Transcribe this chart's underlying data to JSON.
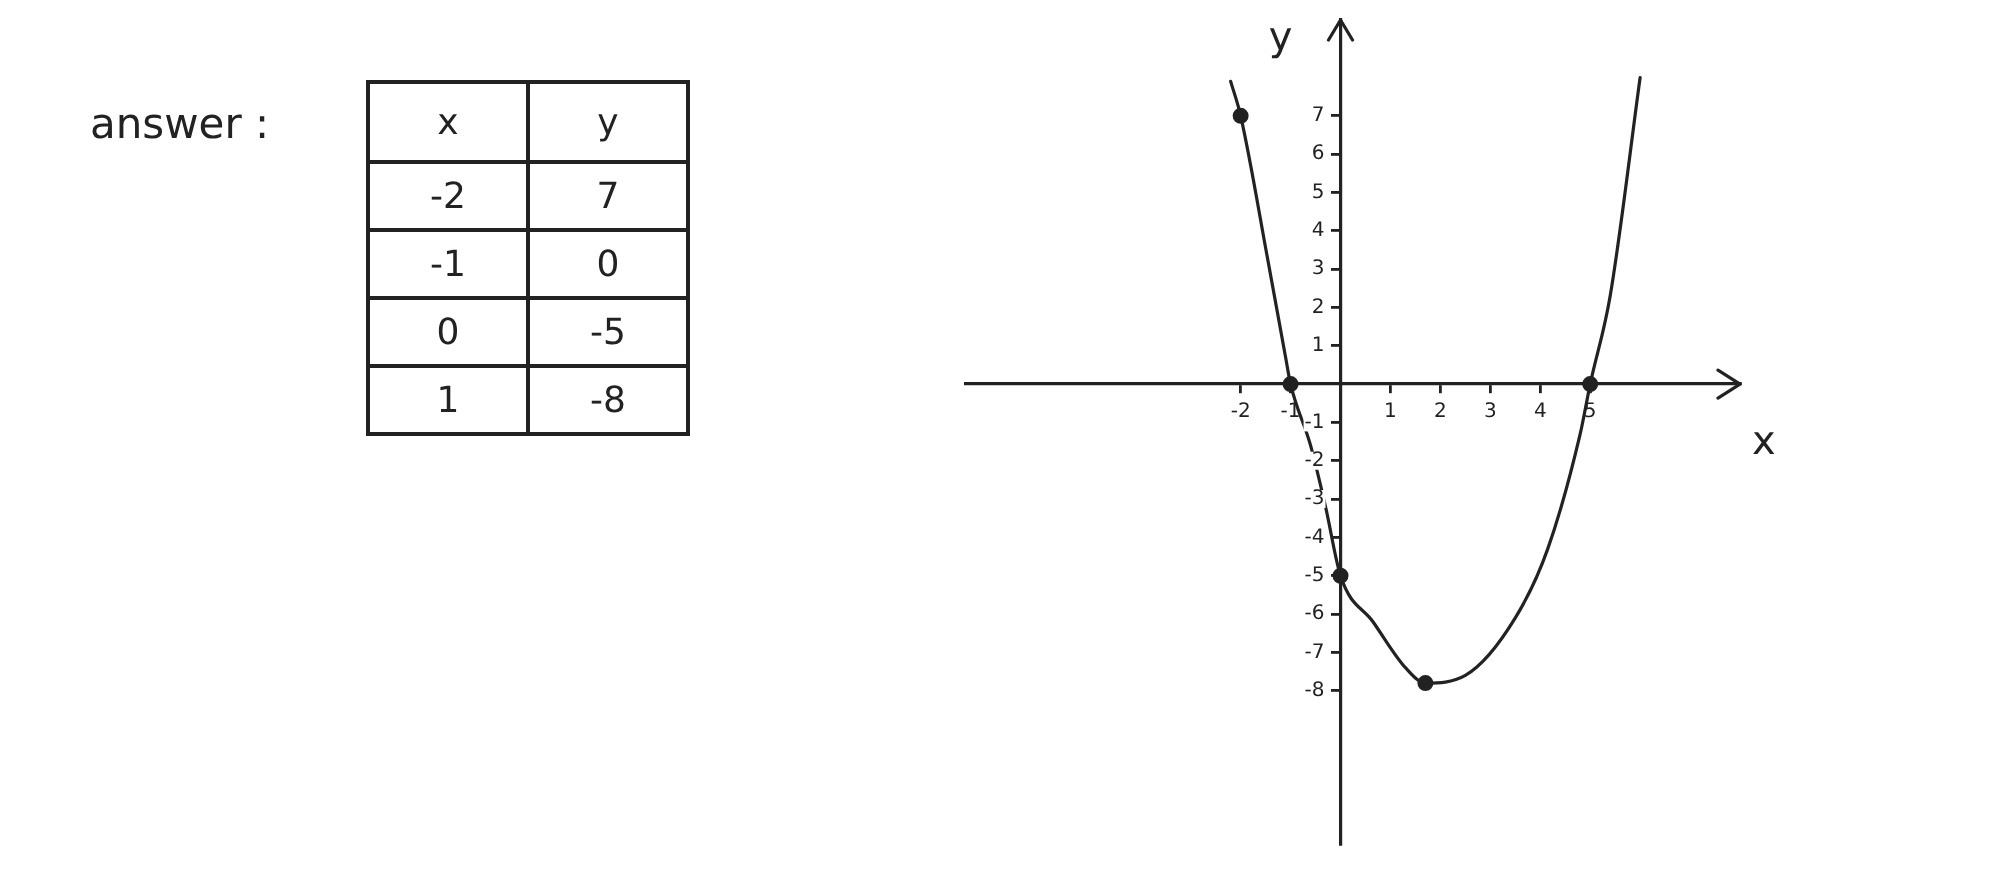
{
  "chart_data": [
    {
      "type": "heatmap",
      "annotations": [
        "answer :"
      ],
      "ylabel": "x",
      "categories": [
        "y"
      ],
      "y_categories": [
        "-2",
        "-1",
        "0",
        "1"
      ],
      "cells": [
        [
          7
        ],
        [
          0
        ],
        [
          -5
        ],
        [
          -8
        ]
      ],
      "data_labels": true
    },
    {
      "type": "line",
      "xlabel": "x",
      "ylabel": "y",
      "series": [
        {
          "type": "line",
          "color": "#222222",
          "marker": "none",
          "x": [
            -2.2,
            -2,
            -1.45,
            -1.1,
            -1,
            -0.6,
            -0.3,
            0,
            0.65,
            1.3,
            1.7,
            2.5,
            3.5,
            4.15,
            4.8,
            5,
            5.4,
            6
          ],
          "values": [
            7.9,
            7,
            3.2,
            0.7,
            0,
            -1.6,
            -3.2,
            -5,
            -6.2,
            -7.4,
            -7.8,
            -7.6,
            -6.1,
            -4.3,
            -1.3,
            0,
            2.3,
            8
          ]
        },
        {
          "type": "scatter",
          "color": "#222222",
          "marker": "circle",
          "x": [
            -2,
            -1,
            0,
            1.7,
            5
          ],
          "values": [
            7,
            0,
            -5,
            -7.8,
            0
          ]
        }
      ],
      "xlim": [
        -7.5,
        8
      ],
      "ylim": [
        -12,
        9.5
      ],
      "xticks": [
        -2,
        -1,
        1,
        2,
        3,
        4,
        5
      ],
      "yticks": [
        -8,
        -7,
        -6,
        -5,
        -4,
        -3,
        -2,
        -1,
        1,
        2,
        3,
        4,
        5,
        6,
        7
      ],
      "grid": false,
      "legend": false
    }
  ]
}
